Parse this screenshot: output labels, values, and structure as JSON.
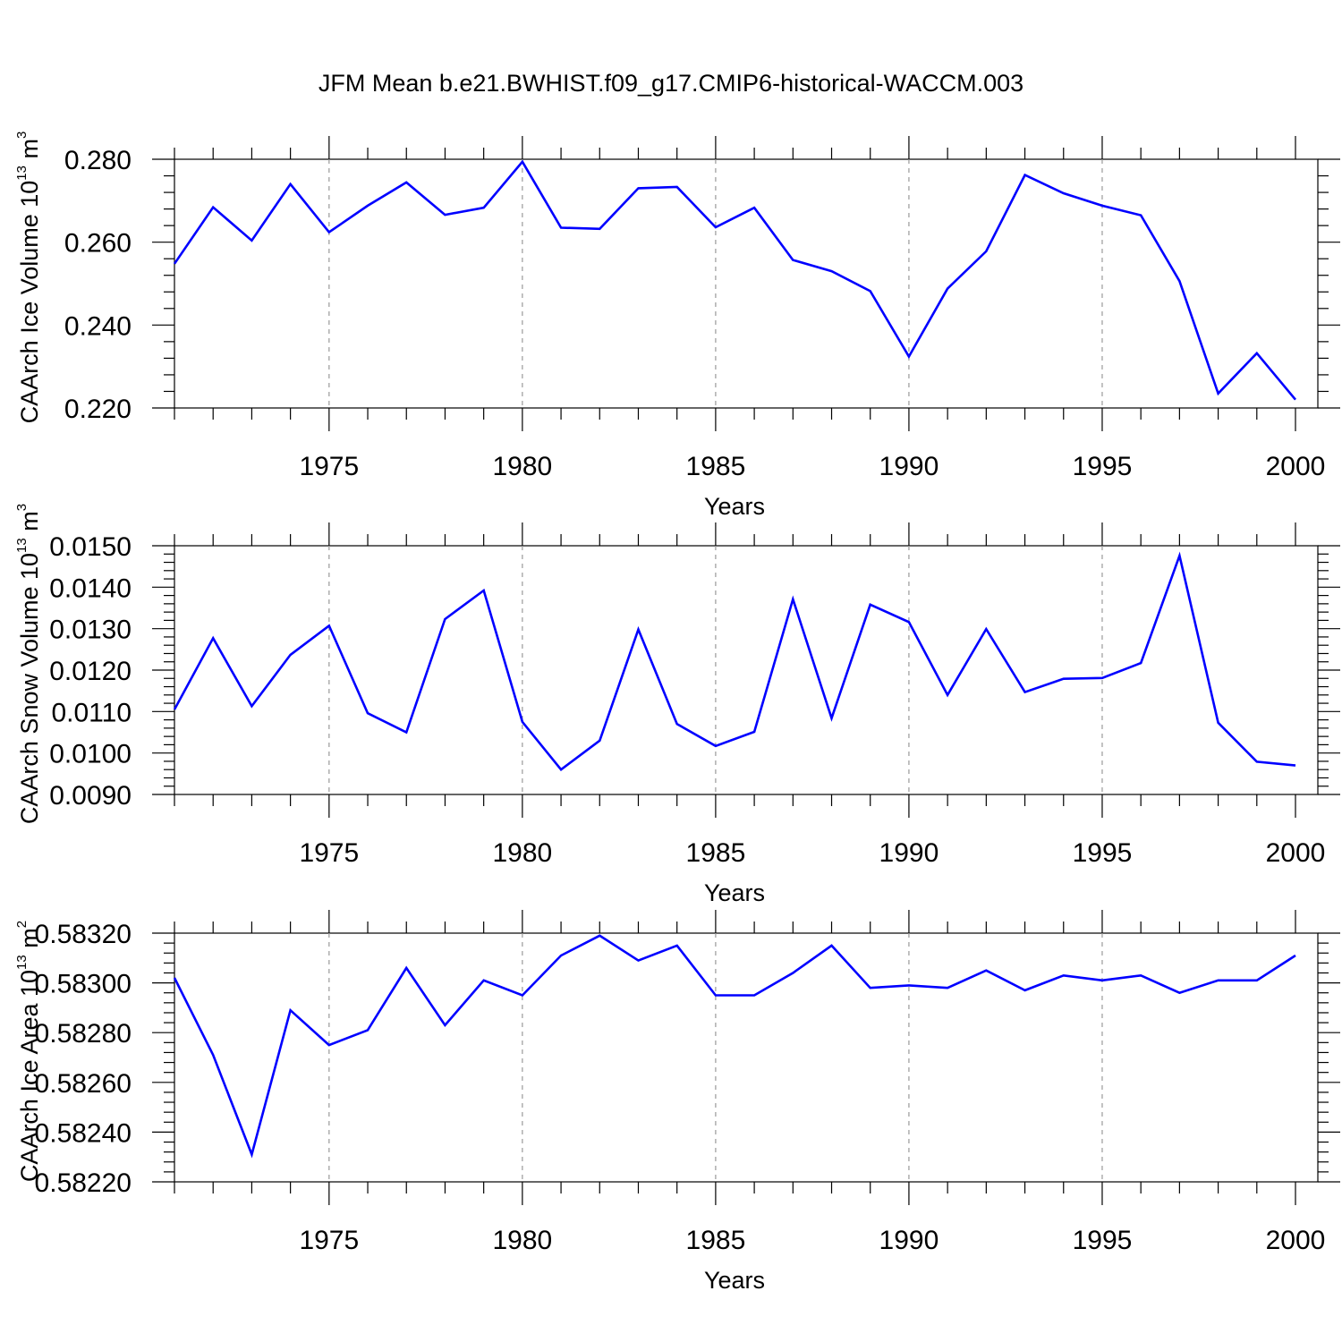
{
  "title": "JFM Mean b.e21.BWHIST.f09_g17.CMIP6-historical-WACCM.003",
  "line_color": "#0000ff",
  "chart_data": [
    {
      "type": "line",
      "ylabel": "CAArch Ice Volume 10",
      "ylabel_exp": "13",
      "ylabel_unit": "m",
      "ylabel_unit_exp": "3",
      "xlabel": "Years",
      "xlim": [
        1971,
        2000
      ],
      "ylim": [
        0.22,
        0.28
      ],
      "xticks": [
        "1975",
        "1980",
        "1985",
        "1990",
        "1995",
        "2000"
      ],
      "yticks": [
        "0.220",
        "0.240",
        "0.260",
        "0.280"
      ],
      "x": [
        1971,
        1972,
        1973,
        1974,
        1975,
        1976,
        1977,
        1978,
        1979,
        1980,
        1981,
        1982,
        1983,
        1984,
        1985,
        1986,
        1987,
        1988,
        1989,
        1990,
        1991,
        1992,
        1993,
        1994,
        1995,
        1996,
        1997,
        1998,
        1999,
        2000
      ],
      "values": [
        0.2548,
        0.2684,
        0.2604,
        0.274,
        0.2624,
        0.2688,
        0.2744,
        0.2666,
        0.2683,
        0.2794,
        0.2635,
        0.2632,
        0.273,
        0.2733,
        0.2636,
        0.2683,
        0.2557,
        0.253,
        0.2482,
        0.2324,
        0.2488,
        0.2578,
        0.2762,
        0.2718,
        0.2688,
        0.2665,
        0.2506,
        0.2235,
        0.2332,
        0.222
      ]
    },
    {
      "type": "line",
      "ylabel": "CAArch Snow Volume 10",
      "ylabel_exp": "13",
      "ylabel_unit": "m",
      "ylabel_unit_exp": "3",
      "xlabel": "Years",
      "xlim": [
        1971,
        2000
      ],
      "ylim": [
        0.009,
        0.015
      ],
      "xticks": [
        "1975",
        "1980",
        "1985",
        "1990",
        "1995",
        "2000"
      ],
      "yticks": [
        "0.0090",
        "0.0100",
        "0.0110",
        "0.0120",
        "0.0130",
        "0.0140",
        "0.0150"
      ],
      "x": [
        1971,
        1972,
        1973,
        1974,
        1975,
        1976,
        1977,
        1978,
        1979,
        1980,
        1981,
        1982,
        1983,
        1984,
        1985,
        1986,
        1987,
        1988,
        1989,
        1990,
        1991,
        1992,
        1993,
        1994,
        1995,
        1996,
        1997,
        1998,
        1999,
        2000
      ],
      "values": [
        0.01105,
        0.01277,
        0.01113,
        0.01237,
        0.01307,
        0.01096,
        0.0105,
        0.01323,
        0.01392,
        0.01075,
        0.0096,
        0.0103,
        0.01298,
        0.0107,
        0.01017,
        0.01051,
        0.01371,
        0.01084,
        0.01358,
        0.01316,
        0.0114,
        0.01299,
        0.01147,
        0.01179,
        0.01181,
        0.01217,
        0.01476,
        0.01073,
        0.00979,
        0.0097
      ]
    },
    {
      "type": "line",
      "ylabel": "CAArch Ice Area 10",
      "ylabel_exp": "13",
      "ylabel_unit": "m",
      "ylabel_unit_exp": "2",
      "xlabel": "Years",
      "xlim": [
        1971,
        2000
      ],
      "ylim": [
        0.5822,
        0.5832
      ],
      "xticks": [
        "1975",
        "1980",
        "1985",
        "1990",
        "1995",
        "2000"
      ],
      "yticks": [
        "0.58220",
        "0.58240",
        "0.58260",
        "0.58280",
        "0.58300",
        "0.58320"
      ],
      "x": [
        1971,
        1972,
        1973,
        1974,
        1975,
        1976,
        1977,
        1978,
        1979,
        1980,
        1981,
        1982,
        1983,
        1984,
        1985,
        1986,
        1987,
        1988,
        1989,
        1990,
        1991,
        1992,
        1993,
        1994,
        1995,
        1996,
        1997,
        1998,
        1999,
        2000
      ],
      "values": [
        0.58302,
        0.58271,
        0.58231,
        0.58289,
        0.58275,
        0.58281,
        0.58306,
        0.58283,
        0.58301,
        0.58295,
        0.58311,
        0.58319,
        0.58309,
        0.58315,
        0.58295,
        0.58295,
        0.58304,
        0.58315,
        0.58298,
        0.58299,
        0.58298,
        0.58305,
        0.58297,
        0.58303,
        0.58301,
        0.58303,
        0.58296,
        0.58301,
        0.58301,
        0.58311
      ]
    }
  ]
}
